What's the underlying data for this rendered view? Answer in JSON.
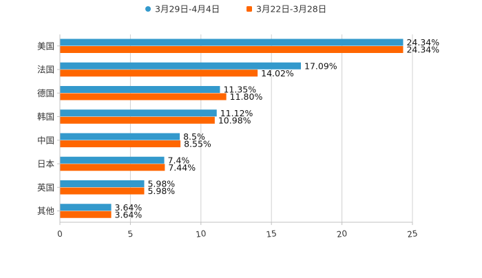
{
  "chart_data": {
    "type": "bar",
    "orientation": "horizontal",
    "categories": [
      "美国",
      "法国",
      "德国",
      "韩国",
      "中国",
      "日本",
      "英国",
      "其他"
    ],
    "series": [
      {
        "name": "3月29日-4月4日",
        "color": "#3399cc",
        "values": [
          24.34,
          17.09,
          11.35,
          11.12,
          8.5,
          7.4,
          5.98,
          3.64
        ],
        "labels": [
          "24.34%",
          "17.09%",
          "11.35%",
          "11.12%",
          "8.5%",
          "7.4%",
          "5.98%",
          "3.64%"
        ]
      },
      {
        "name": "3月22日-3月28日",
        "color": "#ff6600",
        "values": [
          24.34,
          14.02,
          11.8,
          10.98,
          8.55,
          7.44,
          5.98,
          3.64
        ],
        "labels": [
          "24.34%",
          "14.02%",
          "11.80%",
          "10.98%",
          "8.55%",
          "7.44%",
          "5.98%",
          "3.64%"
        ]
      }
    ],
    "xlim": [
      0,
      25
    ],
    "xticks": [
      0,
      5,
      10,
      15,
      20,
      25
    ],
    "xtick_labels": [
      "0",
      "5",
      "10",
      "15",
      "20",
      "25"
    ],
    "grid": true,
    "legend_position": "top-center",
    "title": "",
    "xlabel": "",
    "ylabel": ""
  }
}
